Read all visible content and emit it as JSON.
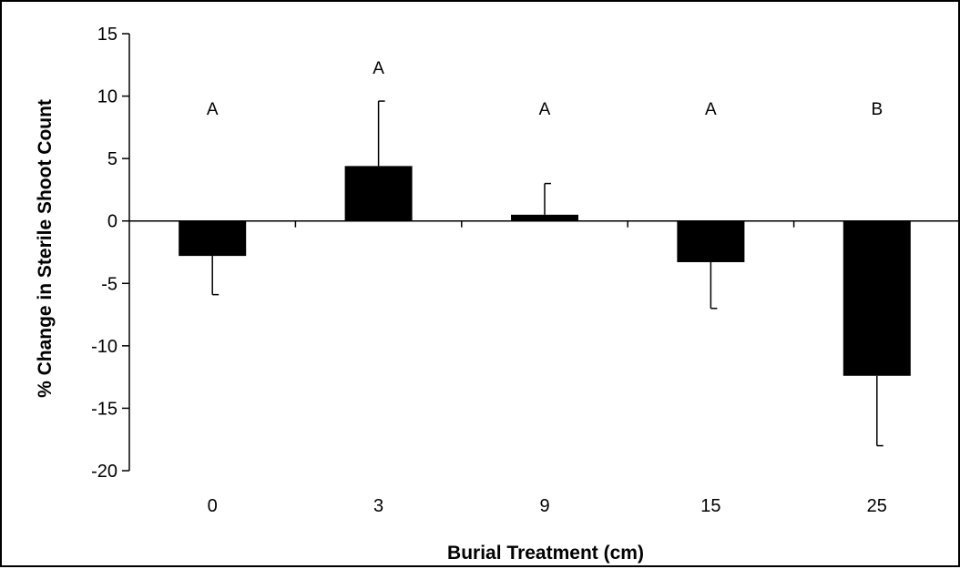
{
  "chart_data": {
    "type": "bar",
    "title": "",
    "xlabel": "Burial Treatment (cm)",
    "ylabel": "% Change in Sterile Shoot Count",
    "categories": [
      "0",
      "3",
      "9",
      "15",
      "25"
    ],
    "values": [
      -2.8,
      4.4,
      0.5,
      -3.3,
      -12.4
    ],
    "error_bars": [
      3.1,
      5.2,
      2.5,
      3.7,
      5.6
    ],
    "error_direction": [
      "down",
      "up",
      "up",
      "down",
      "down"
    ],
    "significance_letters": [
      "A",
      "A",
      "A",
      "A",
      "B"
    ],
    "ylim": [
      -20,
      15
    ],
    "yticks": [
      "-20",
      "-15",
      "-10",
      "-5",
      "0",
      "5",
      "10",
      "15"
    ],
    "grid": false,
    "legend": "none",
    "bar_color": "#000000"
  }
}
